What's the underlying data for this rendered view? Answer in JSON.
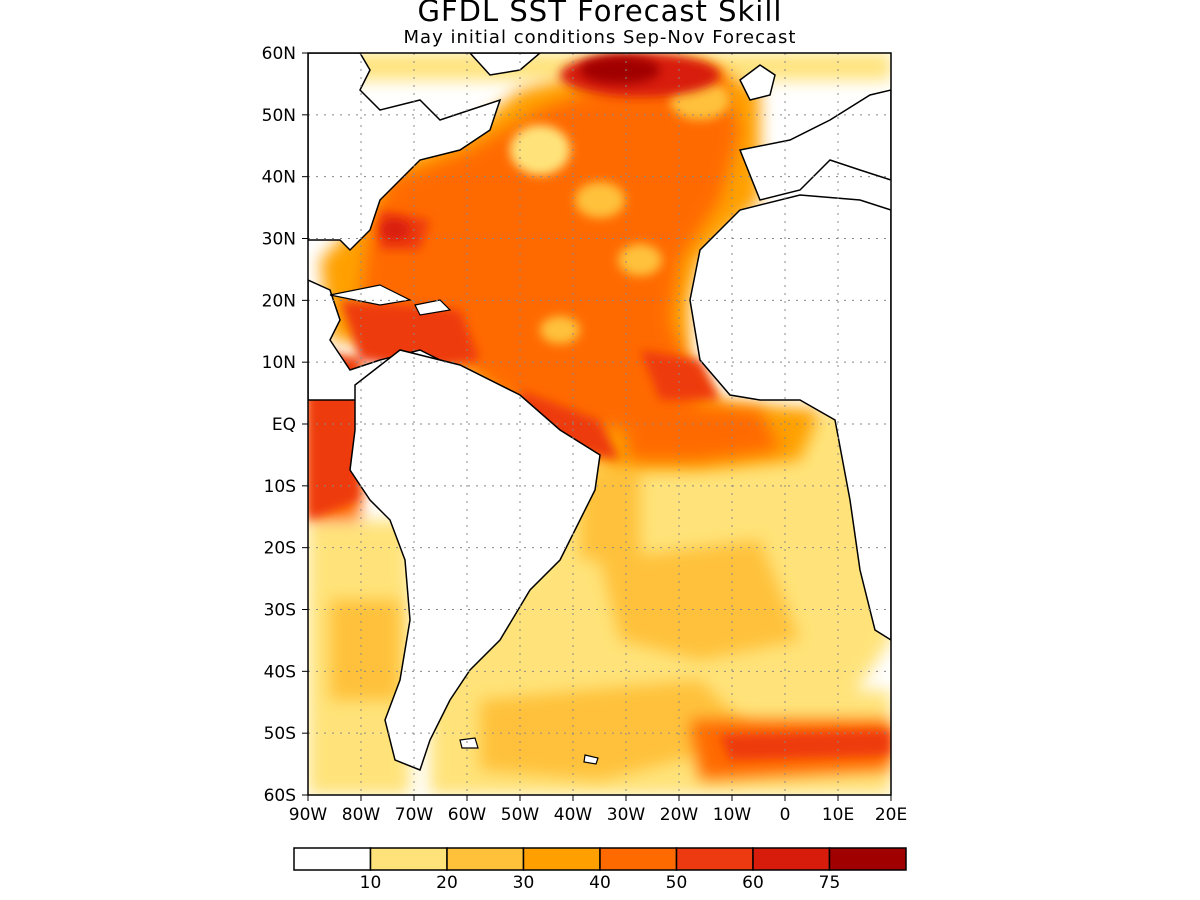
{
  "title": "GFDL SST Forecast Skill",
  "subtitle": "May initial conditions  Sep-Nov Forecast",
  "map": {
    "lon_range": [
      -90,
      20
    ],
    "lat_range": [
      -60,
      60
    ],
    "lat_tick_labels": [
      "60N",
      "50N",
      "40N",
      "30N",
      "20N",
      "10N",
      "EQ",
      "10S",
      "20S",
      "30S",
      "40S",
      "50S",
      "60S"
    ],
    "lon_tick_labels": [
      "90W",
      "80W",
      "70W",
      "60W",
      "50W",
      "40W",
      "30W",
      "20W",
      "10W",
      "0",
      "10E",
      "20E"
    ],
    "grid": "dotted"
  },
  "colorbar": {
    "levels": [
      "10",
      "20",
      "30",
      "40",
      "50",
      "60",
      "75"
    ],
    "colors": [
      "#ffffff",
      "#ffe37a",
      "#ffc13a",
      "#ffa000",
      "#ff6a00",
      "#ee3a10",
      "#d81c0c",
      "#a00000"
    ]
  }
}
